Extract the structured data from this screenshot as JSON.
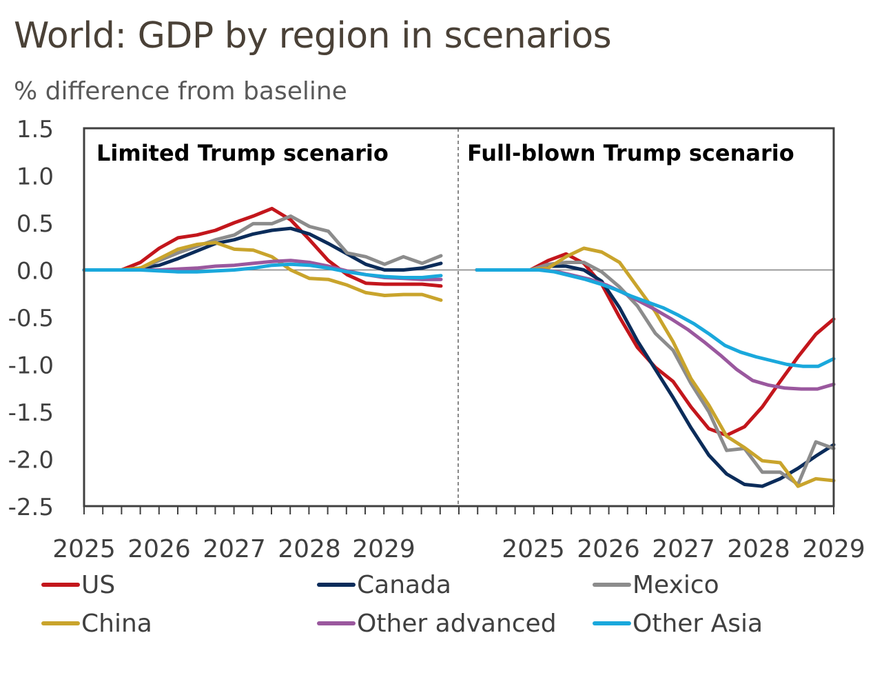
{
  "title": "World: GDP by region in scenarios",
  "subtitle": "% difference from baseline",
  "chart_data": {
    "type": "line",
    "ylim": [
      -2.5,
      1.5
    ],
    "yticks": [
      "1.5",
      "1.0",
      "0.5",
      "0.0",
      "-0.5",
      "-1.0",
      "-1.5",
      "-2.0",
      "-2.5"
    ],
    "legend_position": "bottom",
    "grid": false,
    "colors": {
      "US": "#c3161c",
      "Canada": "#0b2c5a",
      "Mexico": "#8c8c8c",
      "China": "#c9a42c",
      "Other advanced": "#9a589e",
      "Other Asia": "#1aa8dc"
    },
    "panels": [
      {
        "title": "Limited Trump scenario",
        "x_tick_labels": [
          "2025",
          "2026",
          "2027",
          "2028",
          "2029"
        ],
        "series": [
          {
            "name": "US",
            "values": [
              0.0,
              0.0,
              0.0,
              0.08,
              0.23,
              0.34,
              0.37,
              0.42,
              0.5,
              0.57,
              0.65,
              0.53,
              0.32,
              0.1,
              -0.05,
              -0.14,
              -0.15,
              -0.15,
              -0.15,
              -0.17
            ]
          },
          {
            "name": "Canada",
            "values": [
              0.0,
              0.0,
              0.0,
              0.02,
              0.05,
              0.12,
              0.2,
              0.28,
              0.32,
              0.38,
              0.42,
              0.44,
              0.38,
              0.28,
              0.17,
              0.06,
              0.0,
              0.0,
              0.02,
              0.07
            ]
          },
          {
            "name": "Mexico",
            "values": [
              0.0,
              0.0,
              0.0,
              0.02,
              0.1,
              0.18,
              0.25,
              0.32,
              0.37,
              0.49,
              0.49,
              0.57,
              0.46,
              0.41,
              0.18,
              0.14,
              0.06,
              0.14,
              0.07,
              0.15
            ]
          },
          {
            "name": "China",
            "values": [
              0.0,
              0.0,
              0.0,
              0.02,
              0.12,
              0.22,
              0.27,
              0.29,
              0.22,
              0.21,
              0.14,
              0.0,
              -0.09,
              -0.1,
              -0.16,
              -0.24,
              -0.27,
              -0.26,
              -0.26,
              -0.32
            ]
          },
          {
            "name": "Other advanced",
            "values": [
              0.0,
              0.0,
              0.0,
              0.0,
              0.0,
              0.01,
              0.02,
              0.04,
              0.05,
              0.07,
              0.09,
              0.1,
              0.08,
              0.04,
              -0.01,
              -0.05,
              -0.08,
              -0.09,
              -0.1,
              -0.1
            ]
          },
          {
            "name": "Other Asia",
            "values": [
              0.0,
              0.0,
              0.0,
              0.0,
              -0.01,
              -0.02,
              -0.02,
              -0.01,
              0.0,
              0.02,
              0.05,
              0.06,
              0.05,
              0.02,
              -0.02,
              -0.05,
              -0.07,
              -0.08,
              -0.08,
              -0.06
            ]
          }
        ]
      },
      {
        "title": "Full-blown Trump scenario",
        "x_tick_labels": [
          "2025",
          "2026",
          "2027",
          "2028",
          "2029"
        ],
        "series": [
          {
            "name": "US",
            "values": [
              0.0,
              0.0,
              0.0,
              0.0,
              0.1,
              0.17,
              0.07,
              -0.15,
              -0.5,
              -0.82,
              -1.03,
              -1.18,
              -1.45,
              -1.68,
              -1.75,
              -1.66,
              -1.45,
              -1.18,
              -0.92,
              -0.68,
              -0.52
            ]
          },
          {
            "name": "Canada",
            "values": [
              0.0,
              0.0,
              0.0,
              0.0,
              0.04,
              0.04,
              0.0,
              -0.12,
              -0.4,
              -0.75,
              -1.05,
              -1.35,
              -1.67,
              -1.96,
              -2.16,
              -2.27,
              -2.29,
              -2.21,
              -2.1,
              -1.97,
              -1.85
            ]
          },
          {
            "name": "Mexico",
            "values": [
              0.0,
              0.0,
              0.0,
              0.0,
              0.06,
              0.08,
              0.08,
              -0.02,
              -0.18,
              -0.38,
              -0.67,
              -0.85,
              -1.2,
              -1.5,
              -1.91,
              -1.89,
              -2.14,
              -2.14,
              -2.27,
              -1.82,
              -1.89
            ]
          },
          {
            "name": "China",
            "values": [
              0.0,
              0.0,
              0.0,
              0.0,
              0.02,
              0.14,
              0.23,
              0.19,
              0.08,
              -0.18,
              -0.44,
              -0.76,
              -1.15,
              -1.43,
              -1.76,
              -1.88,
              -2.02,
              -2.04,
              -2.29,
              -2.21,
              -2.23
            ]
          },
          {
            "name": "Other advanced",
            "values": [
              0.0,
              0.0,
              0.0,
              0.0,
              0.0,
              -0.02,
              -0.06,
              -0.1,
              -0.16,
              -0.24,
              -0.33,
              -0.42,
              -0.52,
              -0.63,
              -0.76,
              -0.9,
              -1.05,
              -1.17,
              -1.22,
              -1.25,
              -1.26,
              -1.26,
              -1.21
            ]
          },
          {
            "name": "Other Asia",
            "values": [
              0.0,
              0.0,
              0.0,
              0.0,
              0.0,
              -0.02,
              -0.06,
              -0.1,
              -0.15,
              -0.21,
              -0.28,
              -0.34,
              -0.4,
              -0.48,
              -0.57,
              -0.68,
              -0.8,
              -0.87,
              -0.92,
              -0.96,
              -1.0,
              -1.02,
              -1.02,
              -0.94
            ]
          }
        ]
      }
    ]
  },
  "legend": [
    {
      "name": "US",
      "label": "US",
      "color": "#c3161c"
    },
    {
      "name": "Canada",
      "label": "Canada",
      "color": "#0b2c5a"
    },
    {
      "name": "Mexico",
      "label": "Mexico",
      "color": "#8c8c8c"
    },
    {
      "name": "China",
      "label": "China",
      "color": "#c9a42c"
    },
    {
      "name": "Other advanced",
      "label": "Other advanced",
      "color": "#9a589e"
    },
    {
      "name": "Other Asia",
      "label": "Other Asia",
      "color": "#1aa8dc"
    }
  ]
}
